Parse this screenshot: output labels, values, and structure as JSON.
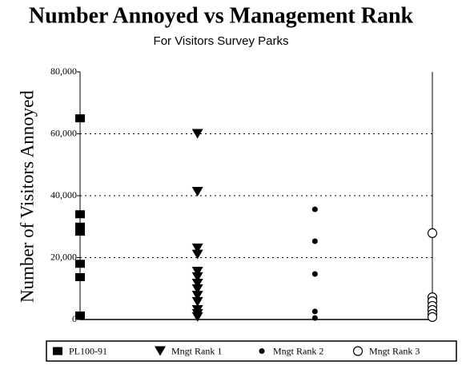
{
  "chart_data": {
    "type": "scatter",
    "title": "Number Annoyed vs Management Rank",
    "subtitle": "For Visitors Survey Parks",
    "y_label": "Number of Visitors Annoyed",
    "ylim": [
      0,
      80000
    ],
    "yticks": [
      {
        "value": 0,
        "label": "0"
      },
      {
        "value": 20000,
        "label": "20,000"
      },
      {
        "value": 40000,
        "label": "40,000"
      },
      {
        "value": 60000,
        "label": "60,000"
      },
      {
        "value": 80000,
        "label": "80,000"
      }
    ],
    "grid": true,
    "legend": "bottom",
    "series": [
      {
        "name": "PL100-91",
        "color": "#000000",
        "marker": "square",
        "values": [
          65000,
          34000,
          30000,
          28400,
          18000,
          13700,
          1300
        ]
      },
      {
        "name": "Mngt Rank 1",
        "color": "#000000",
        "marker": "triangle",
        "values": [
          60000,
          41300,
          23000,
          21000,
          15500,
          13700,
          11600,
          9800,
          7700,
          5700,
          3100,
          1800,
          800
        ]
      },
      {
        "name": "Mngt Rank 2",
        "color": "#000000",
        "marker": "dot",
        "values": [
          35600,
          25300,
          14700,
          2600,
          500
        ]
      },
      {
        "name": "Mngt Rank 3",
        "color": "#000000",
        "marker": "open-circle",
        "values": [
          27900,
          7200,
          5900,
          4400,
          3100,
          1800,
          800
        ]
      }
    ]
  }
}
